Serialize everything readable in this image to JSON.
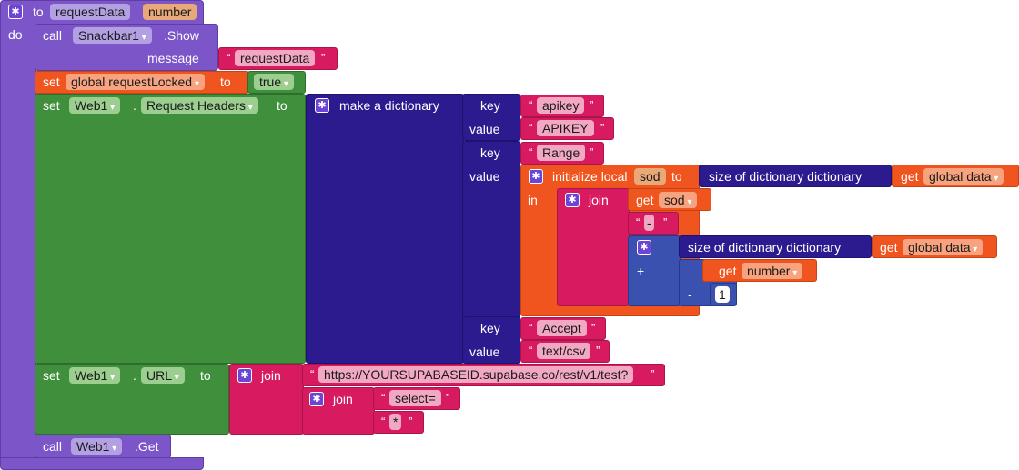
{
  "procedure": {
    "to_label": "to",
    "name": "requestData",
    "param": "number",
    "do_label": "do"
  },
  "snackbar_call": {
    "call_label": "call",
    "component": "Snackbar1",
    "method": ".Show",
    "message_label": "message",
    "message_value": "requestData"
  },
  "set_locked": {
    "set_label": "set",
    "variable": "global requestLocked",
    "to_label": "to",
    "value": "true"
  },
  "set_headers": {
    "set_label": "set",
    "component": "Web1",
    "dot": ".",
    "property": "Request Headers",
    "to_label": "to",
    "dict_label": "make a dictionary",
    "key_label": "key",
    "value_label": "value",
    "entries": [
      {
        "key": "apikey",
        "value": "APIKEY"
      },
      {
        "key": "Range"
      },
      {
        "key": "Accept",
        "value": "text/csv"
      }
    ],
    "init_local": {
      "label": "initialize local",
      "var": "sod",
      "to_label": "to",
      "size_label": "size of dictionary  dictionary",
      "get_label": "get",
      "get_var": "global data",
      "in_label": "in",
      "join_label": "join",
      "get_sod_var": "sod",
      "dash": "-",
      "plus_label": "+",
      "minus_label": "-",
      "size2_label": "size of dictionary  dictionary",
      "get2_var": "global data",
      "get_number_var": "number",
      "one": "1"
    }
  },
  "set_url": {
    "set_label": "set",
    "component": "Web1",
    "dot": ".",
    "property": "URL",
    "to_label": "to",
    "join_label": "join",
    "url_text": "https://YOURSUPABASEID.supabase.co/rest/v1/test?",
    "join2_label": "join",
    "select_text": "select=",
    "star_text": "*"
  },
  "web_get": {
    "call_label": "call",
    "component": "Web1",
    "method": ".Get"
  }
}
